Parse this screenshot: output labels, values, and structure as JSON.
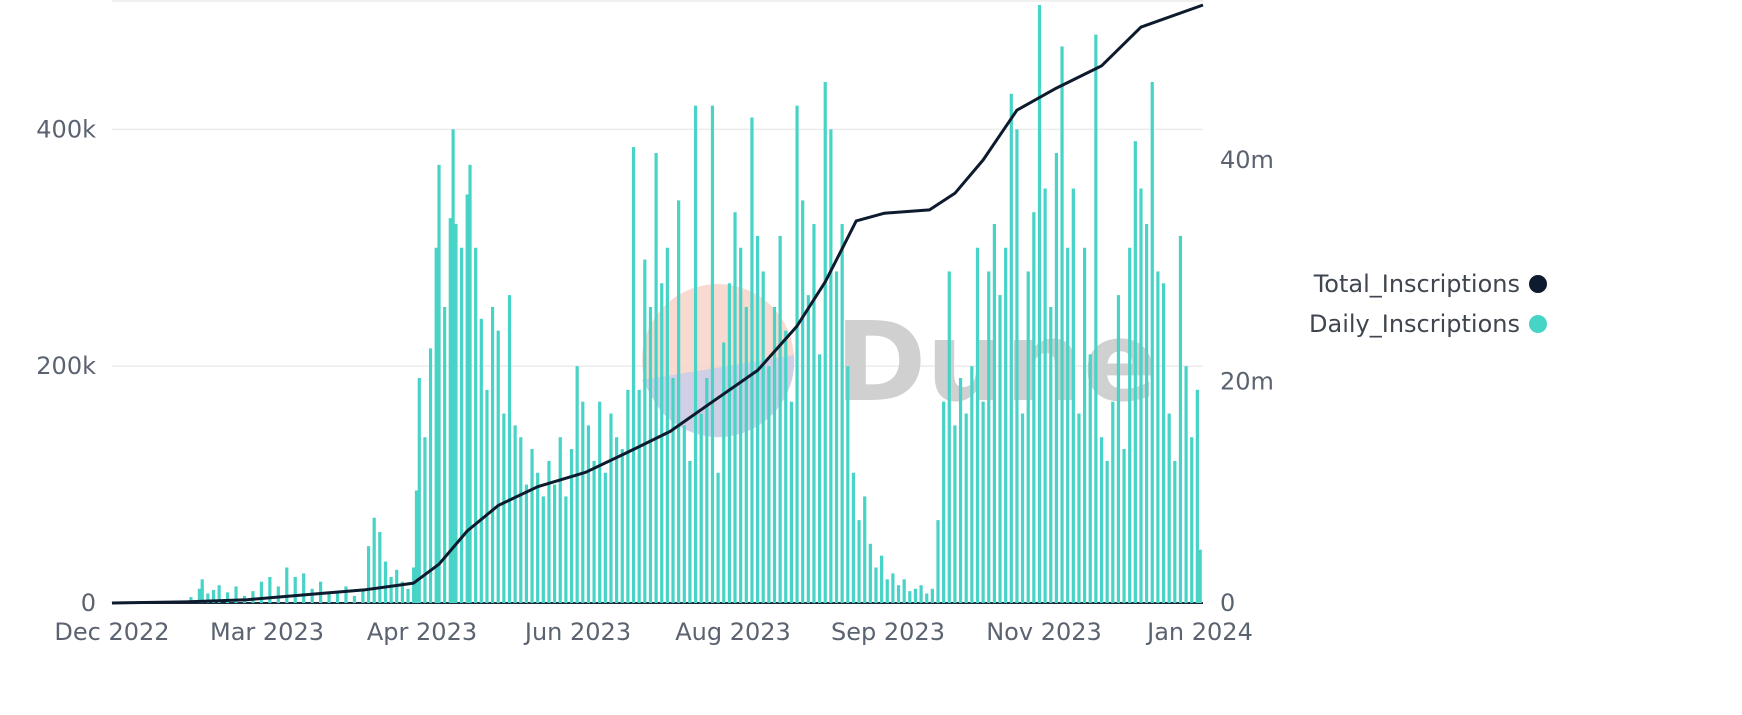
{
  "chart_data": {
    "type": "bar+line",
    "title": "",
    "watermark": "Dune",
    "x_tick_labels": [
      "Dec 2022",
      "Mar 2023",
      "Apr 2023",
      "Jun 2023",
      "Aug 2023",
      "Sep 2023",
      "Nov 2023",
      "Jan 2024"
    ],
    "x_range": [
      "2022-12-15",
      "2024-01-06"
    ],
    "y_left": {
      "ticks": [
        0,
        200000,
        400000
      ],
      "tick_labels": [
        "0",
        "200k",
        "400k"
      ],
      "range": [
        0,
        505000
      ]
    },
    "y_right": {
      "ticks": [
        0,
        20000000,
        40000000
      ],
      "tick_labels": [
        "0",
        "20m",
        "40m"
      ],
      "range": [
        0,
        54000000
      ]
    },
    "grid": true,
    "legend": {
      "position": "right",
      "items": [
        {
          "label": "Total_Inscriptions",
          "color": "#0e1a2e"
        },
        {
          "label": "Daily_Inscriptions",
          "color": "#47d3c6"
        }
      ]
    },
    "series": [
      {
        "name": "Daily_Inscriptions",
        "type": "bar",
        "axis": "left",
        "color": "#47d3c6",
        "points": [
          [
            "2022-12-15",
            300
          ],
          [
            "2022-12-22",
            500
          ],
          [
            "2023-01-01",
            900
          ],
          [
            "2023-01-08",
            2000
          ],
          [
            "2023-01-12",
            5000
          ],
          [
            "2023-01-15",
            12000
          ],
          [
            "2023-01-16",
            20000
          ],
          [
            "2023-01-18",
            8000
          ],
          [
            "2023-01-20",
            11000
          ],
          [
            "2023-01-22",
            15000
          ],
          [
            "2023-01-25",
            9000
          ],
          [
            "2023-01-28",
            14000
          ],
          [
            "2023-01-31",
            6000
          ],
          [
            "2023-02-03",
            10000
          ],
          [
            "2023-02-06",
            18000
          ],
          [
            "2023-02-09",
            22000
          ],
          [
            "2023-02-12",
            14000
          ],
          [
            "2023-02-15",
            30000
          ],
          [
            "2023-02-18",
            22000
          ],
          [
            "2023-02-21",
            25000
          ],
          [
            "2023-02-24",
            12000
          ],
          [
            "2023-02-27",
            18000
          ],
          [
            "2023-03-02",
            8000
          ],
          [
            "2023-03-05",
            10000
          ],
          [
            "2023-03-08",
            14000
          ],
          [
            "2023-03-11",
            6000
          ],
          [
            "2023-03-14",
            12000
          ],
          [
            "2023-03-16",
            48000
          ],
          [
            "2023-03-18",
            72000
          ],
          [
            "2023-03-20",
            60000
          ],
          [
            "2023-03-22",
            35000
          ],
          [
            "2023-03-24",
            22000
          ],
          [
            "2023-03-26",
            28000
          ],
          [
            "2023-03-28",
            18000
          ],
          [
            "2023-03-30",
            12000
          ],
          [
            "2023-04-01",
            30000
          ],
          [
            "2023-04-02",
            95000
          ],
          [
            "2023-04-03",
            190000
          ],
          [
            "2023-04-05",
            140000
          ],
          [
            "2023-04-07",
            215000
          ],
          [
            "2023-04-09",
            300000
          ],
          [
            "2023-04-10",
            370000
          ],
          [
            "2023-04-12",
            250000
          ],
          [
            "2023-04-14",
            325000
          ],
          [
            "2023-04-15",
            400000
          ],
          [
            "2023-04-16",
            320000
          ],
          [
            "2023-04-18",
            300000
          ],
          [
            "2023-04-20",
            345000
          ],
          [
            "2023-04-21",
            370000
          ],
          [
            "2023-04-23",
            300000
          ],
          [
            "2023-04-25",
            240000
          ],
          [
            "2023-04-27",
            180000
          ],
          [
            "2023-04-29",
            250000
          ],
          [
            "2023-05-01",
            230000
          ],
          [
            "2023-05-03",
            160000
          ],
          [
            "2023-05-05",
            260000
          ],
          [
            "2023-05-07",
            150000
          ],
          [
            "2023-05-09",
            140000
          ],
          [
            "2023-05-11",
            100000
          ],
          [
            "2023-05-13",
            130000
          ],
          [
            "2023-05-15",
            110000
          ],
          [
            "2023-05-17",
            90000
          ],
          [
            "2023-05-19",
            120000
          ],
          [
            "2023-05-21",
            100000
          ],
          [
            "2023-05-23",
            140000
          ],
          [
            "2023-05-25",
            90000
          ],
          [
            "2023-05-27",
            130000
          ],
          [
            "2023-05-29",
            200000
          ],
          [
            "2023-05-31",
            170000
          ],
          [
            "2023-06-02",
            150000
          ],
          [
            "2023-06-04",
            120000
          ],
          [
            "2023-06-06",
            170000
          ],
          [
            "2023-06-08",
            110000
          ],
          [
            "2023-06-10",
            160000
          ],
          [
            "2023-06-12",
            140000
          ],
          [
            "2023-06-14",
            130000
          ],
          [
            "2023-06-16",
            180000
          ],
          [
            "2023-06-18",
            385000
          ],
          [
            "2023-06-20",
            180000
          ],
          [
            "2023-06-22",
            290000
          ],
          [
            "2023-06-24",
            250000
          ],
          [
            "2023-06-26",
            380000
          ],
          [
            "2023-06-28",
            270000
          ],
          [
            "2023-06-30",
            300000
          ],
          [
            "2023-07-02",
            190000
          ],
          [
            "2023-07-04",
            340000
          ],
          [
            "2023-07-06",
            150000
          ],
          [
            "2023-07-08",
            120000
          ],
          [
            "2023-07-10",
            420000
          ],
          [
            "2023-07-12",
            160000
          ],
          [
            "2023-07-14",
            190000
          ],
          [
            "2023-07-16",
            420000
          ],
          [
            "2023-07-18",
            110000
          ],
          [
            "2023-07-20",
            220000
          ],
          [
            "2023-07-22",
            270000
          ],
          [
            "2023-07-24",
            330000
          ],
          [
            "2023-07-26",
            300000
          ],
          [
            "2023-07-28",
            250000
          ],
          [
            "2023-07-30",
            410000
          ],
          [
            "2023-08-01",
            310000
          ],
          [
            "2023-08-03",
            280000
          ],
          [
            "2023-08-05",
            200000
          ],
          [
            "2023-08-07",
            250000
          ],
          [
            "2023-08-09",
            310000
          ],
          [
            "2023-08-11",
            230000
          ],
          [
            "2023-08-13",
            170000
          ],
          [
            "2023-08-15",
            420000
          ],
          [
            "2023-08-17",
            340000
          ],
          [
            "2023-08-19",
            260000
          ],
          [
            "2023-08-21",
            320000
          ],
          [
            "2023-08-23",
            210000
          ],
          [
            "2023-08-25",
            440000
          ],
          [
            "2023-08-27",
            400000
          ],
          [
            "2023-08-29",
            280000
          ],
          [
            "2023-08-31",
            320000
          ],
          [
            "2023-09-02",
            200000
          ],
          [
            "2023-09-04",
            110000
          ],
          [
            "2023-09-06",
            70000
          ],
          [
            "2023-09-08",
            90000
          ],
          [
            "2023-09-10",
            50000
          ],
          [
            "2023-09-12",
            30000
          ],
          [
            "2023-09-14",
            40000
          ],
          [
            "2023-09-16",
            20000
          ],
          [
            "2023-09-18",
            25000
          ],
          [
            "2023-09-20",
            15000
          ],
          [
            "2023-09-22",
            20000
          ],
          [
            "2023-09-24",
            10000
          ],
          [
            "2023-09-26",
            12000
          ],
          [
            "2023-09-28",
            15000
          ],
          [
            "2023-09-30",
            8000
          ],
          [
            "2023-10-02",
            12000
          ],
          [
            "2023-10-04",
            70000
          ],
          [
            "2023-10-06",
            170000
          ],
          [
            "2023-10-08",
            280000
          ],
          [
            "2023-10-10",
            150000
          ],
          [
            "2023-10-12",
            190000
          ],
          [
            "2023-10-14",
            160000
          ],
          [
            "2023-10-16",
            200000
          ],
          [
            "2023-10-18",
            300000
          ],
          [
            "2023-10-20",
            170000
          ],
          [
            "2023-10-22",
            280000
          ],
          [
            "2023-10-24",
            320000
          ],
          [
            "2023-10-26",
            260000
          ],
          [
            "2023-10-28",
            300000
          ],
          [
            "2023-10-30",
            430000
          ],
          [
            "2023-11-01",
            400000
          ],
          [
            "2023-11-03",
            160000
          ],
          [
            "2023-11-05",
            280000
          ],
          [
            "2023-11-07",
            330000
          ],
          [
            "2023-11-09",
            505000
          ],
          [
            "2023-11-11",
            350000
          ],
          [
            "2023-11-13",
            250000
          ],
          [
            "2023-11-15",
            380000
          ],
          [
            "2023-11-17",
            470000
          ],
          [
            "2023-11-19",
            300000
          ],
          [
            "2023-11-21",
            350000
          ],
          [
            "2023-11-23",
            160000
          ],
          [
            "2023-11-25",
            300000
          ],
          [
            "2023-11-27",
            210000
          ],
          [
            "2023-11-29",
            480000
          ],
          [
            "2023-12-01",
            140000
          ],
          [
            "2023-12-03",
            120000
          ],
          [
            "2023-12-05",
            170000
          ],
          [
            "2023-12-07",
            260000
          ],
          [
            "2023-12-09",
            130000
          ],
          [
            "2023-12-11",
            300000
          ],
          [
            "2023-12-13",
            390000
          ],
          [
            "2023-12-15",
            350000
          ],
          [
            "2023-12-17",
            320000
          ],
          [
            "2023-12-19",
            440000
          ],
          [
            "2023-12-21",
            280000
          ],
          [
            "2023-12-23",
            270000
          ],
          [
            "2023-12-25",
            160000
          ],
          [
            "2023-12-27",
            120000
          ],
          [
            "2023-12-29",
            310000
          ],
          [
            "2023-12-31",
            200000
          ],
          [
            "2024-01-02",
            140000
          ],
          [
            "2024-01-04",
            180000
          ],
          [
            "2024-01-05",
            45000
          ]
        ]
      },
      {
        "name": "Total_Inscriptions",
        "type": "line",
        "axis": "right",
        "color": "#0e1a2e",
        "points": [
          [
            "2022-12-15",
            0
          ],
          [
            "2023-01-10",
            100000
          ],
          [
            "2023-02-01",
            300000
          ],
          [
            "2023-03-01",
            900000
          ],
          [
            "2023-03-15",
            1200000
          ],
          [
            "2023-04-01",
            1800000
          ],
          [
            "2023-04-10",
            3500000
          ],
          [
            "2023-04-20",
            6500000
          ],
          [
            "2023-05-01",
            8800000
          ],
          [
            "2023-05-15",
            10500000
          ],
          [
            "2023-06-01",
            11800000
          ],
          [
            "2023-06-15",
            13500000
          ],
          [
            "2023-07-01",
            15500000
          ],
          [
            "2023-07-15",
            18000000
          ],
          [
            "2023-08-01",
            21000000
          ],
          [
            "2023-08-15",
            25000000
          ],
          [
            "2023-08-25",
            29000000
          ],
          [
            "2023-09-01",
            32500000
          ],
          [
            "2023-09-05",
            34500000
          ],
          [
            "2023-09-15",
            35200000
          ],
          [
            "2023-10-01",
            35500000
          ],
          [
            "2023-10-10",
            37000000
          ],
          [
            "2023-10-20",
            40000000
          ],
          [
            "2023-11-01",
            44500000
          ],
          [
            "2023-11-15",
            46500000
          ],
          [
            "2023-12-01",
            48500000
          ],
          [
            "2023-12-15",
            52000000
          ],
          [
            "2024-01-06",
            54000000
          ]
        ]
      }
    ]
  }
}
